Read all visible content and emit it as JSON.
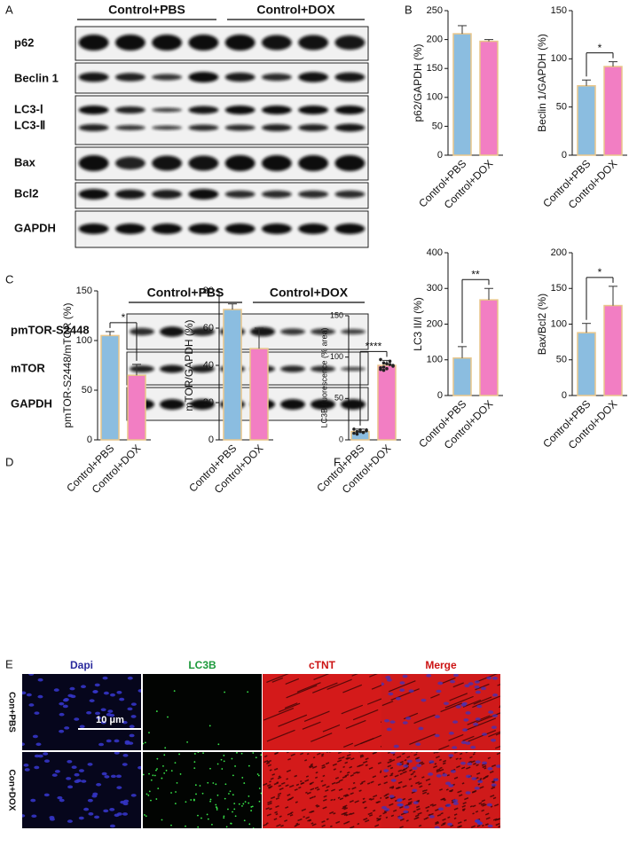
{
  "panel_labels": [
    "A",
    "B",
    "C",
    "D",
    "E",
    "F"
  ],
  "blot_a": {
    "groups": [
      "Control+PBS",
      "Control+DOX"
    ],
    "rows": [
      "p62",
      "Beclin 1",
      "LC3-Ⅰ",
      "LC3-Ⅱ",
      "Bax",
      "Bcl2",
      "GAPDH"
    ]
  },
  "blot_c": {
    "groups": [
      "Control+PBS",
      "Control+DOX"
    ],
    "rows": [
      "pmTOR-S2448",
      "mTOR",
      "GAPDH"
    ]
  },
  "microscopy": {
    "columns": [
      "Dapi",
      "LC3B",
      "cTNT",
      "Merge"
    ],
    "rows": [
      "Con+PBS",
      "Con+DOX"
    ],
    "scale_bar": "10 μm"
  },
  "chart_data": [
    {
      "type": "bar",
      "y_label": "p62/GAPDH (%)",
      "categories": [
        "Control+PBS",
        "Control+DOX"
      ],
      "values": [
        210,
        197
      ],
      "errors": [
        14,
        3
      ],
      "colors": [
        "#8bbde0",
        "#f27ec3"
      ],
      "edge_color": "#e9c68a",
      "ylim": [
        0,
        250
      ],
      "yticks": [
        0,
        50,
        100,
        150,
        200,
        250
      ]
    },
    {
      "type": "bar",
      "y_label": "Beclin 1/GAPDH (%)",
      "categories": [
        "Control+PBS",
        "Control+DOX"
      ],
      "values": [
        72,
        92
      ],
      "errors": [
        6,
        5
      ],
      "colors": [
        "#8bbde0",
        "#f27ec3"
      ],
      "edge_color": "#e9c68a",
      "ylim": [
        0,
        150
      ],
      "yticks": [
        0,
        50,
        100,
        150
      ],
      "annotation": "*"
    },
    {
      "type": "bar",
      "y_label": "LC3 II/I (%)",
      "categories": [
        "Control+PBS",
        "Control+DOX"
      ],
      "values": [
        105,
        268
      ],
      "errors": [
        32,
        32
      ],
      "colors": [
        "#8bbde0",
        "#f27ec3"
      ],
      "edge_color": "#e9c68a",
      "ylim": [
        0,
        400
      ],
      "yticks": [
        0,
        100,
        200,
        300,
        400
      ],
      "annotation": "**"
    },
    {
      "type": "bar",
      "y_label": "Bax/Bcl2 (%)",
      "categories": [
        "Control+PBS",
        "Control+DOX"
      ],
      "values": [
        88,
        126
      ],
      "errors": [
        13,
        27
      ],
      "colors": [
        "#8bbde0",
        "#f27ec3"
      ],
      "edge_color": "#e9c68a",
      "ylim": [
        0,
        200
      ],
      "yticks": [
        0,
        50,
        100,
        150,
        200
      ],
      "annotation": "*"
    },
    {
      "type": "bar",
      "y_label": "pmTOR-S2448/mTOR (%)",
      "categories": [
        "Control+PBS",
        "Control+DOX"
      ],
      "values": [
        105,
        65
      ],
      "errors": [
        4,
        11
      ],
      "colors": [
        "#8bbde0",
        "#f27ec3"
      ],
      "edge_color": "#e9c68a",
      "ylim": [
        0,
        150
      ],
      "yticks": [
        0,
        50,
        100,
        150
      ],
      "annotation": "*"
    },
    {
      "type": "bar",
      "y_label": "mTOR/GAPDH (%)",
      "categories": [
        "Control+PBS",
        "Control+DOX"
      ],
      "values": [
        70,
        49
      ],
      "errors": [
        3,
        11
      ],
      "colors": [
        "#8bbde0",
        "#f27ec3"
      ],
      "edge_color": "#e9c68a",
      "ylim": [
        0,
        80
      ],
      "yticks": [
        0,
        20,
        40,
        60,
        80
      ]
    },
    {
      "type": "bar",
      "y_label": "LC3B fluorescence (% area)",
      "categories": [
        "Control+PBS",
        "Control+DOX"
      ],
      "values": [
        10,
        90
      ],
      "errors": [
        3,
        6
      ],
      "colors": [
        "#8bbde0",
        "#f27ec3"
      ],
      "edge_color": "#e9c68a",
      "ylim": [
        0,
        150
      ],
      "yticks": [
        0,
        50,
        100,
        150
      ],
      "annotation": "****",
      "points": [
        [
          8,
          10,
          12,
          9,
          11,
          13,
          7,
          10,
          9,
          12
        ],
        [
          85,
          88,
          92,
          95,
          90,
          87,
          93,
          86,
          91,
          89,
          97,
          84
        ]
      ]
    }
  ]
}
